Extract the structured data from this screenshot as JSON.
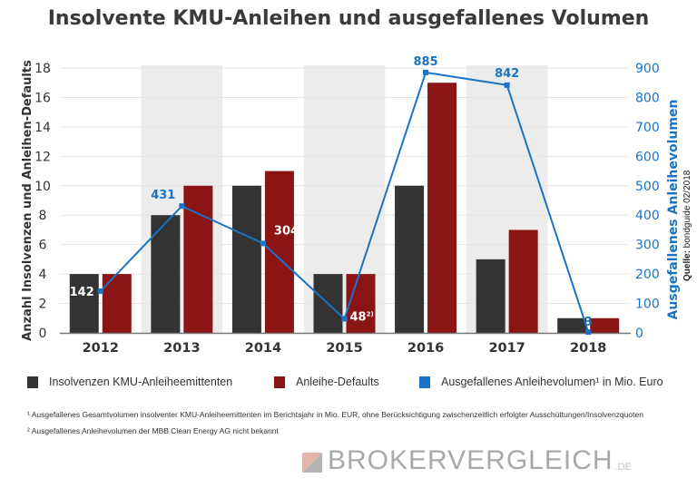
{
  "chart_data": {
    "type": "bar",
    "title": "Insolvente KMU-Anleihen und ausgefallenes Volumen",
    "categories": [
      "2012",
      "2013",
      "2014",
      "2015",
      "2016",
      "2017",
      "2018"
    ],
    "series": [
      {
        "name": "Insolvenzen KMU-Anleiheemittenten",
        "type": "bar",
        "axis": "left",
        "color": "#333333",
        "values": [
          4,
          8,
          10,
          4,
          10,
          5,
          1
        ]
      },
      {
        "name": "Anleihe-Defaults",
        "type": "bar",
        "axis": "left",
        "color": "#8b1414",
        "values": [
          4,
          10,
          11,
          4,
          17,
          7,
          1
        ]
      },
      {
        "name": "Ausgefallenes Anleihevolumen¹ in Mio. Euro",
        "type": "line",
        "axis": "right",
        "color": "#1a73c4",
        "values": [
          142,
          431,
          304,
          48,
          885,
          842,
          3
        ],
        "labels": [
          "142",
          "431",
          "304",
          "48",
          "885",
          "842",
          "3"
        ],
        "label_suffix_2015": "2)"
      }
    ],
    "ylabel": "Anzahl Insolvenzen und Anleihen-Defaults",
    "ylim": [
      0,
      18
    ],
    "yticks": [
      "0",
      "2",
      "4",
      "6",
      "8",
      "10",
      "12",
      "14",
      "16",
      "18"
    ],
    "y2label": "Ausgefallenes Anleihevolumen",
    "y2lim": [
      0,
      900
    ],
    "y2ticks": [
      "0",
      "100",
      "200",
      "300",
      "400",
      "500",
      "600",
      "700",
      "800",
      "900"
    ],
    "grid": true,
    "shaded_categories": [
      "2013",
      "2015",
      "2017"
    ],
    "legend_position": "bottom",
    "source_label": "Quelle:",
    "source": "bondguide 02/2018"
  },
  "footnotes": [
    "¹ Ausgefallenes Gesamtvolumen insolventer KMU-Anleiheemittenten im Berichtsjahr in Mio. EUR, ohne Berücksichtigung zwischenzeitlich erfolgter Ausschüttungen/Insolvenzquoten",
    "² Ausgefallenes Anleihevolumen der MBB Clean Energy AG nicht bekannt"
  ],
  "logo": {
    "text": "BROKERVERGLEICH",
    "tld": ".DE"
  }
}
